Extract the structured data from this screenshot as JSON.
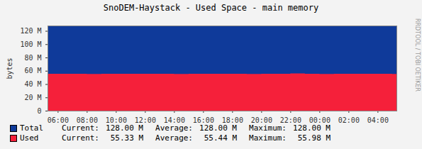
{
  "chart_data": {
    "type": "area",
    "title": "SnoDEM-Haystack - Used Space - main memory",
    "y_label": "bytes",
    "annotations": [
      "RRDTOOL / TOBI OETIKER"
    ],
    "stacked": false,
    "legend": "bottom",
    "x": [
      5.3,
      6,
      7,
      8,
      9,
      10,
      11,
      12,
      13,
      14,
      15,
      16,
      17,
      18,
      19,
      20,
      21,
      22,
      23,
      24,
      25,
      26,
      27,
      28,
      29,
      29.3
    ],
    "xlim": [
      5.3,
      29.3
    ],
    "xticks": [
      {
        "value": 6,
        "label": "06:00"
      },
      {
        "value": 8,
        "label": "08:00"
      },
      {
        "value": 10,
        "label": "10:00"
      },
      {
        "value": 12,
        "label": "12:00"
      },
      {
        "value": 14,
        "label": "14:00"
      },
      {
        "value": 16,
        "label": "16:00"
      },
      {
        "value": 18,
        "label": "18:00"
      },
      {
        "value": 20,
        "label": "20:00"
      },
      {
        "value": 22,
        "label": "22:00"
      },
      {
        "value": 24,
        "label": "00:00"
      },
      {
        "value": 26,
        "label": "02:00"
      },
      {
        "value": 28,
        "label": "04:00"
      }
    ],
    "ylim": [
      0,
      128
    ],
    "yticks": [
      0,
      {
        "value": 20,
        "label": "20 M"
      },
      {
        "value": 40,
        "label": "40 M"
      },
      {
        "value": 60,
        "label": "60 M"
      },
      {
        "value": 80,
        "label": "80 M"
      },
      {
        "value": 100,
        "label": "100 M"
      },
      {
        "value": 120,
        "label": "120 M"
      }
    ],
    "series": [
      {
        "name": "Total",
        "color": "#0f3a9a",
        "values": [
          128,
          128,
          128,
          128,
          128,
          128,
          128,
          128,
          128,
          128,
          128,
          128,
          128,
          128,
          128,
          128,
          128,
          128,
          128,
          128,
          128,
          128,
          128,
          128,
          128,
          128
        ],
        "stats": [
          {
            "name": "Current:",
            "label": "128.00 M"
          },
          {
            "name": "Average:",
            "label": "128.00 M"
          },
          {
            "name": "Maximum:",
            "label": "128.00 M"
          }
        ]
      },
      {
        "name": "Used",
        "color": "#f5203a",
        "values": [
          55.4,
          55.4,
          55.5,
          55.3,
          55.4,
          55.6,
          55.4,
          55.5,
          55.4,
          55.3,
          55.5,
          55.4,
          55.6,
          55.4,
          55.3,
          55.5,
          55.4,
          55.98,
          55.4,
          55.3,
          55.5,
          55.4,
          55.6,
          55.4,
          55.3,
          55.33
        ],
        "stats": [
          {
            "name": "Current:",
            "label": "55.33 M"
          },
          {
            "name": "Average:",
            "label": "55.44 M"
          },
          {
            "name": "Maximum:",
            "label": "55.98 M"
          }
        ]
      }
    ]
  }
}
